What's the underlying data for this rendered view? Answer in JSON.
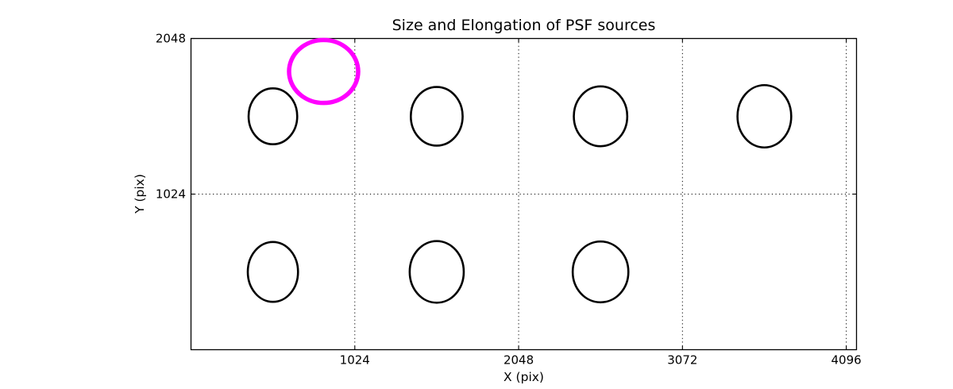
{
  "figure": {
    "title": "Size and Elongation of PSF sources",
    "xlabel": "X (pix)",
    "ylabel": "Y (pix)"
  },
  "chart_data": {
    "type": "scatter",
    "title": "Size and Elongation of PSF sources",
    "xlabel": "X (pix)",
    "ylabel": "Y (pix)",
    "xlim": [
      0,
      4160
    ],
    "ylim": [
      0,
      2048
    ],
    "x_ticks": [
      1024,
      2048,
      3072,
      4096
    ],
    "y_ticks": [
      1024,
      2048
    ],
    "grid": "dotted",
    "legend": "none",
    "colors": {
      "source_stroke": "#000000",
      "highlight_stroke": "#ff00ff",
      "grid": "#000000",
      "frame": "#000000"
    },
    "source_linewidth": 2.6,
    "highlight_linewidth": 5.5,
    "sources": [
      {
        "x": 512,
        "y": 1536,
        "semi_x": 152,
        "semi_y": 184
      },
      {
        "x": 1536,
        "y": 1536,
        "semi_x": 162,
        "semi_y": 193
      },
      {
        "x": 2560,
        "y": 1536,
        "semi_x": 167,
        "semi_y": 197
      },
      {
        "x": 3584,
        "y": 1536,
        "semi_x": 168,
        "semi_y": 205
      },
      {
        "x": 512,
        "y": 512,
        "semi_x": 157,
        "semi_y": 197
      },
      {
        "x": 1536,
        "y": 512,
        "semi_x": 169,
        "semi_y": 203
      },
      {
        "x": 2560,
        "y": 512,
        "semi_x": 174,
        "semi_y": 200
      }
    ],
    "highlighted_source": {
      "x": 829,
      "y": 1831,
      "semi_x": 216,
      "semi_y": 207
    }
  }
}
